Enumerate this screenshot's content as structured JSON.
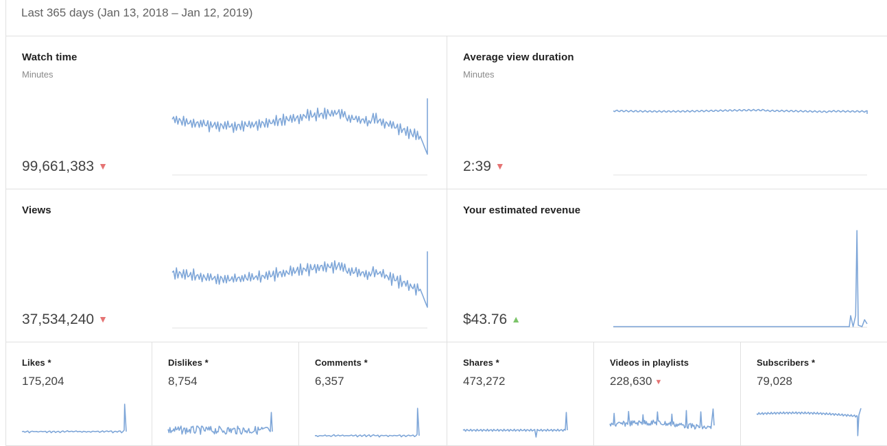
{
  "header": {
    "date_range": "Last 365 days (Jan 13, 2018 – Jan 12, 2019)"
  },
  "colors": {
    "line": "#7ea6d8",
    "down": "#e57373",
    "up": "#7cc46a",
    "divider": "#e0e0e0"
  },
  "metrics": [
    {
      "title": "Watch time",
      "subtitle": "Minutes",
      "value": "99,661,383",
      "trend": "down",
      "trend_icon": "▼"
    },
    {
      "title": "Average view duration",
      "subtitle": "Minutes",
      "value": "2:39",
      "trend": "down",
      "trend_icon": "▼"
    },
    {
      "title": "Views",
      "subtitle": "",
      "value": "37,534,240",
      "trend": "down",
      "trend_icon": "▼"
    },
    {
      "title": "Your estimated revenue",
      "subtitle": "",
      "value": "$43.76",
      "trend": "up",
      "trend_icon": "▲"
    }
  ],
  "small_metrics": [
    {
      "title": "Likes *",
      "value": "175,204",
      "trend": "",
      "trend_icon": ""
    },
    {
      "title": "Dislikes *",
      "value": "8,754",
      "trend": "",
      "trend_icon": ""
    },
    {
      "title": "Comments *",
      "value": "6,357",
      "trend": "",
      "trend_icon": ""
    },
    {
      "title": "Shares *",
      "value": "473,272",
      "trend": "",
      "trend_icon": ""
    },
    {
      "title": "Videos in playlists",
      "value": "228,630",
      "trend": "down",
      "trend_icon": "▼"
    },
    {
      "title": "Subscribers *",
      "value": "79,028",
      "trend": "",
      "trend_icon": ""
    }
  ]
}
